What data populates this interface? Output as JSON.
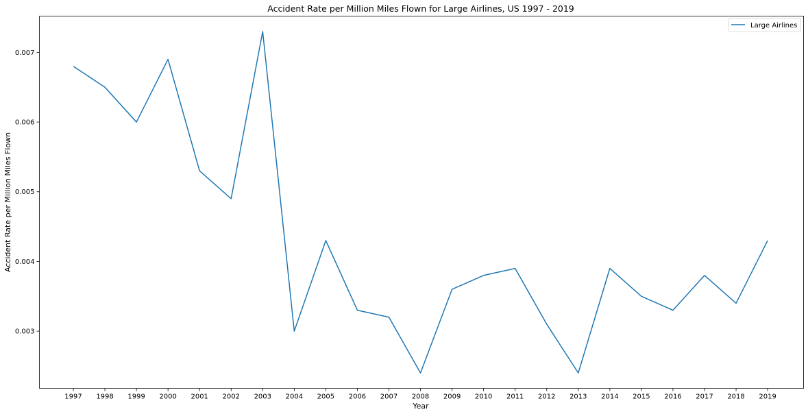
{
  "chart_data": {
    "type": "line",
    "title": "Accident Rate per Million Miles Flown for Large Airlines, US 1997 - 2019",
    "xlabel": "Year",
    "ylabel": "Accident Rate per Million Miles Flown",
    "x": [
      "1997",
      "1998",
      "1999",
      "2000",
      "2001",
      "2002",
      "2003",
      "2004",
      "2005",
      "2006",
      "2007",
      "2008",
      "2009",
      "2010",
      "2011",
      "2012",
      "2013",
      "2014",
      "2015",
      "2016",
      "2017",
      "2018",
      "2019"
    ],
    "series": [
      {
        "name": "Large Airlines",
        "color": "#1f77b4",
        "values": [
          0.0068,
          0.0065,
          0.006,
          0.0069,
          0.0053,
          0.0049,
          0.0073,
          0.003,
          0.0043,
          0.0033,
          0.0032,
          0.0024,
          0.0036,
          0.0038,
          0.0039,
          0.0031,
          0.0024,
          0.0039,
          0.0035,
          0.0033,
          0.0038,
          0.0034,
          0.0043
        ]
      }
    ],
    "yticks": [
      "0.003",
      "0.004",
      "0.005",
      "0.006",
      "0.007"
    ],
    "ylim": [
      0.00218,
      0.00752
    ],
    "grid": false,
    "legend_position": "top-right"
  }
}
